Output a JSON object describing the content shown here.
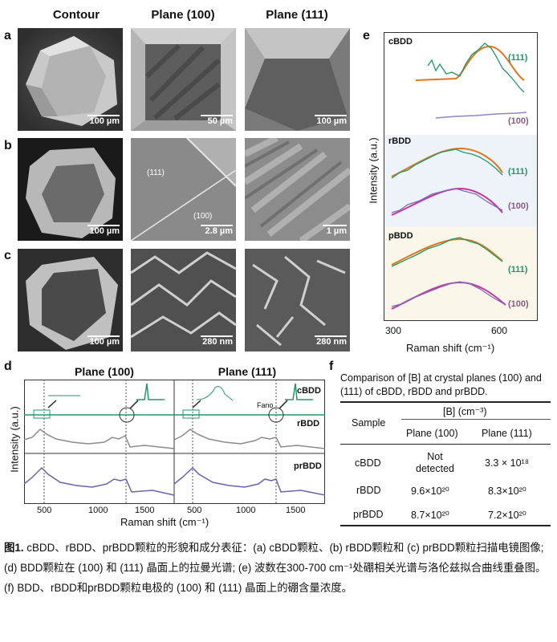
{
  "sem": {
    "col_headers": [
      "Contour",
      "Plane (100)",
      "Plane (111)"
    ],
    "row_labels": [
      "a",
      "b",
      "c"
    ],
    "scalebars": {
      "a": [
        "100 µm",
        "50 µm",
        "100 µm"
      ],
      "b": [
        "100 µm",
        "2.8 µm",
        "1 µm"
      ],
      "c": [
        "100 µm",
        "280 nm",
        "280 nm"
      ]
    },
    "b_annotations": [
      "(111)",
      "(100)"
    ]
  },
  "panel_d": {
    "label": "d",
    "titles": [
      "Plane (100)",
      "Plane (111)"
    ],
    "ylabel": "Intensity (a.u.)",
    "xlabel": "Raman shift (cm⁻¹)",
    "ticks": [
      "500",
      "1000",
      "1500",
      "500",
      "1000",
      "1500"
    ],
    "series": [
      "cBDD",
      "rBDD",
      "prBDD"
    ],
    "annotation": "Fano"
  },
  "panel_e": {
    "label": "e",
    "ylabel": "Intensity (a.u.)",
    "xlabel": "Raman shift (cm⁻¹)",
    "ticks": [
      "300",
      "600"
    ],
    "groups": [
      {
        "name": "cBDD",
        "labels": [
          "(111)",
          "(100)"
        ]
      },
      {
        "name": "rBDD",
        "labels": [
          "(111)",
          "(100)"
        ]
      },
      {
        "name": "pBDD",
        "labels": [
          "(111)",
          "(100)"
        ]
      }
    ]
  },
  "panel_f": {
    "label": "f",
    "caption": "Comparison of [B] at crystal planes (100) and (111) of cBDD, rBDD and prBDD.",
    "header_sample": "Sample",
    "header_b": "[B] (cm⁻³)",
    "header_p100": "Plane (100)",
    "header_p111": "Plane (111)",
    "rows": [
      {
        "sample": "cBDD",
        "p100": "Not detected",
        "p111": "3.3 × 10¹⁸"
      },
      {
        "sample": "rBDD",
        "p100": "9.6×10²⁰",
        "p111": "8.3×10²⁰"
      },
      {
        "sample": "prBDD",
        "p100": "8.7×10²⁰",
        "p111": "7.2×10²⁰"
      }
    ]
  },
  "caption": {
    "label": "图1.",
    "text": " cBDD、rBDD、prBDD颗粒的形貌和成分表征：(a) cBDD颗粒、(b) rBDD颗粒和 (c) prBDD颗粒扫描电镜图像; (d) BDD颗粒在 (100) 和 (111) 晶面上的拉曼光谱; (e) 波数在300-700 cm⁻¹处硼相关光谱与洛伦兹拟合曲线重叠图。(f) BDD、rBDD和prBDD颗粒电极的 (100) 和 (111) 晶面上的硼含量浓度。"
  },
  "colors": {
    "green": "#1e9a6a",
    "gray": "#8a8a8a",
    "purple": "#6f5fb4",
    "orange": "#e2761c",
    "magenta": "#c8369a",
    "pale_blue": "#eef3fa",
    "pale_yellow": "#fbf6ea",
    "label_100": "#8c5a84"
  }
}
